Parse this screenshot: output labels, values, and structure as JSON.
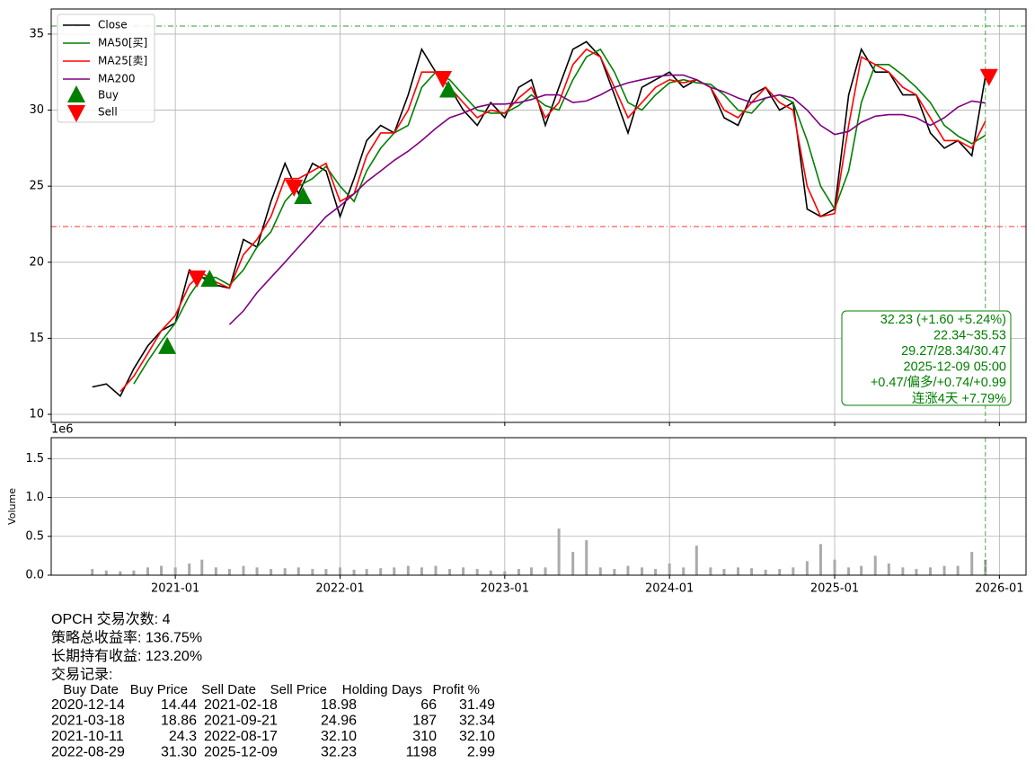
{
  "chart_data": [
    {
      "type": "line",
      "x": [
        "2020-07",
        "2020-08",
        "2020-09",
        "2020-10",
        "2020-11",
        "2020-12",
        "2021-01",
        "2021-02",
        "2021-03",
        "2021-04",
        "2021-05",
        "2021-06",
        "2021-07",
        "2021-08",
        "2021-09",
        "2021-10",
        "2021-11",
        "2021-12",
        "2022-01",
        "2022-02",
        "2022-03",
        "2022-04",
        "2022-05",
        "2022-06",
        "2022-07",
        "2022-08",
        "2022-09",
        "2022-10",
        "2022-11",
        "2022-12",
        "2023-01",
        "2023-02",
        "2023-03",
        "2023-04",
        "2023-05",
        "2023-06",
        "2023-07",
        "2023-08",
        "2023-09",
        "2023-10",
        "2023-11",
        "2023-12",
        "2024-01",
        "2024-02",
        "2024-03",
        "2024-04",
        "2024-05",
        "2024-06",
        "2024-07",
        "2024-08",
        "2024-09",
        "2024-10",
        "2024-11",
        "2024-12",
        "2025-01",
        "2025-02",
        "2025-03",
        "2025-04",
        "2025-05",
        "2025-06",
        "2025-07",
        "2025-08",
        "2025-09",
        "2025-10",
        "2025-11",
        "2025-12"
      ],
      "series": [
        {
          "name": "Close",
          "color": "#000000",
          "values": [
            11.8,
            12.0,
            11.2,
            13.0,
            14.5,
            15.5,
            16,
            19.5,
            19,
            18.5,
            18.3,
            21.5,
            21,
            24,
            26.5,
            24.5,
            26.5,
            26,
            23,
            25.5,
            28,
            29,
            28.5,
            31,
            34,
            32.5,
            31.5,
            30,
            29,
            30.5,
            29.5,
            31.5,
            32,
            29,
            31.5,
            34,
            34.5,
            33.5,
            31,
            28.5,
            31.5,
            32,
            32.5,
            31.5,
            32,
            31.5,
            29.5,
            29,
            31,
            31.5,
            30,
            30.5,
            23.5,
            23,
            23.5,
            31,
            34,
            32.5,
            32.5,
            31,
            31,
            28.5,
            27.5,
            28,
            27,
            32.23
          ]
        },
        {
          "name": "MA50[买]",
          "color": "#008000",
          "values": [
            null,
            null,
            null,
            12.0,
            13.5,
            14.8,
            16,
            17.8,
            19,
            19,
            18.5,
            19.5,
            21,
            22,
            24,
            25,
            25.5,
            26.3,
            25,
            24,
            26,
            27.5,
            28.5,
            29,
            31.5,
            32.5,
            32,
            31,
            30,
            29.8,
            29.8,
            30.3,
            31,
            30.3,
            30,
            32,
            33.5,
            34,
            32.5,
            30.5,
            30,
            31,
            31.8,
            32,
            31.8,
            31.7,
            31,
            30,
            29.8,
            30.8,
            31,
            30.5,
            28,
            25,
            23.5,
            26,
            30.5,
            33,
            33,
            32.3,
            31.5,
            30.5,
            29,
            28.3,
            27.8,
            28.34
          ]
        },
        {
          "name": "MA25[卖]",
          "color": "#ff0000",
          "values": [
            null,
            null,
            11.5,
            12.5,
            14.0,
            15.5,
            16.5,
            18.5,
            19.3,
            18.7,
            18.3,
            20.5,
            21.5,
            23.0,
            25.5,
            25.5,
            26.0,
            26.5,
            24,
            24.5,
            27,
            28.5,
            28.5,
            30,
            32.5,
            32.5,
            31.5,
            30.5,
            29.5,
            30,
            29.8,
            30.8,
            31.5,
            29.5,
            30.5,
            33,
            34,
            33.5,
            31.5,
            29.5,
            30.5,
            31.5,
            32,
            31.8,
            32,
            31.5,
            30,
            29.5,
            30.5,
            31.5,
            30.5,
            30,
            25,
            23,
            23.2,
            29,
            33.5,
            33,
            32.5,
            31.5,
            31,
            29.5,
            28,
            28,
            27.5,
            29.27
          ]
        },
        {
          "name": "MA200",
          "color": "#800080",
          "values": [
            null,
            null,
            null,
            null,
            null,
            null,
            null,
            null,
            null,
            null,
            15.9,
            16.8,
            18,
            19,
            20,
            21,
            22,
            23,
            23.7,
            24.5,
            25.3,
            26,
            26.7,
            27.3,
            28,
            28.8,
            29.5,
            29.8,
            30.2,
            30.4,
            30.4,
            30.5,
            30.7,
            31,
            31,
            30.5,
            30.6,
            31,
            31.5,
            31.8,
            32,
            32.2,
            32.3,
            32.3,
            32,
            31.5,
            31.2,
            30.8,
            30.5,
            30.8,
            31,
            30.8,
            30,
            29,
            28.4,
            28.6,
            29.2,
            29.6,
            29.7,
            29.7,
            29.5,
            29,
            29.5,
            30.2,
            30.6,
            30.47
          ]
        }
      ],
      "markers": [
        {
          "name": "Buy",
          "color": "#008000"
        },
        {
          "name": "Sell",
          "color": "#ff0000"
        }
      ],
      "hlines": [
        {
          "value": 35.53,
          "color": "#008000"
        },
        {
          "value": 22.34,
          "color": "#ff0000"
        }
      ],
      "annotation": [
        "32.23 (+1.60 +5.24%)",
        "22.34~35.53",
        "29.27/28.34/30.47",
        "2025-12-09 05:00",
        "+0.47/偏多/+0.74/+0.99",
        "连涨4天 +7.79%"
      ],
      "xlim": [
        "2020-04",
        "2026-03"
      ],
      "ylim": [
        9.47,
        36.65
      ],
      "yticks": [
        10,
        15,
        20,
        25,
        30,
        35
      ],
      "grid": true,
      "legend": "upper left"
    },
    {
      "type": "bar",
      "ylabel": "Volume",
      "offset_label": "1e6",
      "color": "#aaaaaa",
      "values": [
        0.08,
        0.06,
        0.05,
        0.06,
        0.1,
        0.12,
        0.1,
        0.15,
        0.2,
        0.1,
        0.08,
        0.12,
        0.1,
        0.08,
        0.09,
        0.1,
        0.08,
        0.08,
        0.1,
        0.07,
        0.08,
        0.09,
        0.1,
        0.12,
        0.1,
        0.12,
        0.08,
        0.1,
        0.08,
        0.06,
        0.05,
        0.08,
        0.1,
        0.1,
        0.6,
        0.3,
        0.45,
        0.1,
        0.08,
        0.12,
        0.1,
        0.08,
        0.15,
        0.1,
        0.38,
        0.1,
        0.08,
        0.1,
        0.09,
        0.07,
        0.08,
        0.1,
        0.18,
        0.4,
        0.2,
        0.1,
        0.12,
        0.25,
        0.15,
        0.1,
        0.08,
        0.1,
        0.12,
        0.12,
        0.3,
        0.2
      ],
      "ylim": [
        0,
        1.77
      ],
      "yticks": [
        {
          "value": 0,
          "label": "0.0"
        },
        0.5,
        {
          "value": 1,
          "label": "1.0"
        },
        1.5
      ],
      "xticks": [
        "2021-01",
        "2022-01",
        "2023-01",
        "2024-01",
        "2025-01",
        "2026-01"
      ],
      "grid": true
    }
  ],
  "summary": [
    "OPCH 交易次数: 4",
    "策略总收益率: 136.75%",
    "长期持有收益: 123.20%",
    "交易记录:"
  ],
  "table": {
    "header": [
      "Buy Date",
      "Buy Price",
      "Sell Date",
      "Sell Price",
      "Holding Days",
      "Profit %"
    ],
    "rows": [
      [
        "2020-12-14",
        14.44,
        "2021-02-18",
        18.98,
        66,
        31.49
      ],
      [
        "2021-03-18",
        18.86,
        "2021-09-21",
        24.96,
        187,
        32.34
      ],
      [
        "2021-10-11",
        24.3,
        "2022-08-17",
        {
          "value": 32.1,
          "label": "32.10"
        },
        310,
        {
          "value": 32.1,
          "label": "32.10"
        }
      ],
      [
        "2022-08-29",
        {
          "value": 31.3,
          "label": "31.30"
        },
        "2025-12-09",
        32.23,
        1198,
        2.99
      ]
    ]
  }
}
